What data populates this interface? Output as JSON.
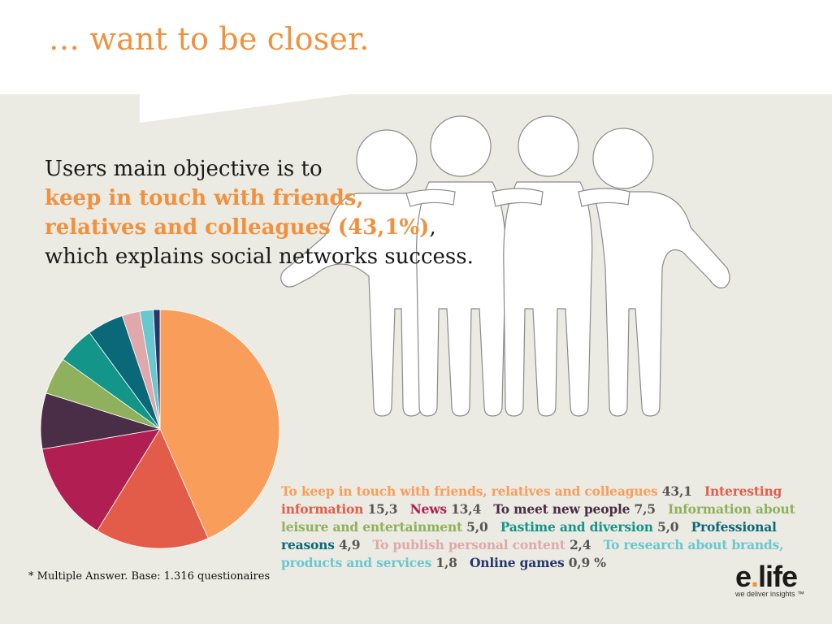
{
  "title": "… want to be closer.",
  "lead": {
    "line1": "Users main objective is to",
    "highlight_line1": "keep in touch with friends,",
    "highlight_line2": "relatives and colleagues (43,1%)",
    "comma": ",",
    "line4": "which explains social networks success."
  },
  "footnote": "* Multiple Answer. Base: 1.316 questionaires",
  "logo": {
    "word_left": "e",
    "word_dot": ".",
    "word_right": "life",
    "tagline": "we deliver insights ™"
  },
  "colors": {
    "accent": "#f0913f",
    "panel": "#ecebe3",
    "slices": [
      "#f99d5b",
      "#e35c4a",
      "#b11f52",
      "#4a2d47",
      "#8fb05c",
      "#13958a",
      "#0a6878",
      "#e0a8aa",
      "#69c7d0",
      "#26366a"
    ]
  },
  "chart_data": {
    "type": "pie",
    "unit": "%",
    "labels": [
      "To keep in touch with friends, relatives and colleagues",
      "Interesting information",
      "News",
      "To meet new people",
      "Information about leisure and entertainment",
      "Pastime and diversion",
      "Professional reasons",
      "To publish personal content",
      "To research about brands, products and services",
      "Online games"
    ],
    "values": [
      43.1,
      15.3,
      13.4,
      7.5,
      5.0,
      5.0,
      4.9,
      2.4,
      1.8,
      0.9
    ],
    "value_labels": [
      "43,1",
      "15,3",
      "13,4",
      "7,5",
      "5,0",
      "5,0",
      "4,9",
      "2,4",
      "1,8",
      "0,9 %"
    ]
  }
}
